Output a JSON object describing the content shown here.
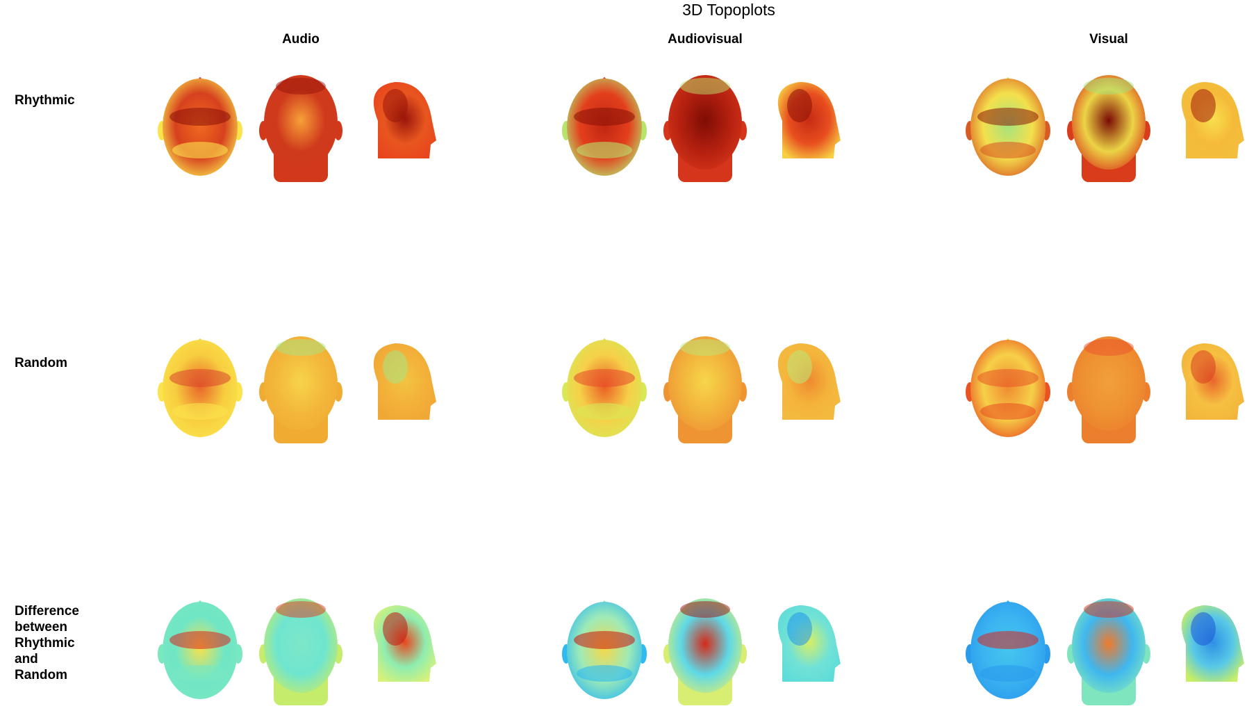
{
  "figure": {
    "title": "3D Topoplots",
    "columns": [
      {
        "label": "Audio"
      },
      {
        "label": "Audiovisual"
      },
      {
        "label": "Visual"
      }
    ],
    "rows": [
      {
        "label": "Rhythmic"
      },
      {
        "label": "Random"
      },
      {
        "label": "Difference\nbetween\nRhythmic\nand\nRandom"
      }
    ],
    "views": [
      "top",
      "back",
      "right-side"
    ],
    "colormap": "jet",
    "panels": [
      [
        {
          "top": {
            "base": "#d6411e",
            "center": "#f06a1f",
            "lower": "#fbe34c",
            "spot": "#8b1007"
          },
          "back": {
            "base": "#cf3a1c",
            "center": "#f7a038",
            "lower": "#d2391b",
            "spot": "#951309"
          },
          "side": {
            "base": "#e8561f",
            "center": "#9a160a",
            "lower": "#e9451d",
            "spot": "#9a160a"
          }
        },
        {
          "top": {
            "base": "#e33f1d",
            "center": "#c02612",
            "lower": "#b7e46d",
            "spot": "#861006"
          },
          "back": {
            "base": "#b3200f",
            "center": "#7e0c05",
            "lower": "#d5351a",
            "spot": "#b7e46d"
          },
          "side": {
            "base": "#e84e1f",
            "center": "#c62b14",
            "lower": "#f6d042",
            "spot": "#8a1107"
          }
        },
        {
          "top": {
            "base": "#f4e04c",
            "center": "#a4e37e",
            "lower": "#d95b24",
            "spot": "#8b1a0b"
          },
          "back": {
            "base": "#ecd446",
            "center": "#7a0b04",
            "lower": "#d93c1b",
            "spot": "#a6e07a"
          },
          "side": {
            "base": "#f5ba3a",
            "center": "#f8e04c",
            "lower": "#f2bf3c",
            "spot": "#a31c0c"
          }
        }
      ],
      [
        {
          "top": {
            "base": "#f7cd3f",
            "center": "#e9642a",
            "lower": "#fbe34c",
            "spot": "#d9452b"
          },
          "back": {
            "base": "#f3b83b",
            "center": "#f7d44a",
            "lower": "#f0ab33",
            "spot": "#a8e684"
          },
          "side": {
            "base": "#f3b13a",
            "center": "#f2c441",
            "lower": "#f0a735",
            "spot": "#a8e684"
          }
        },
        {
          "top": {
            "base": "#f6d048",
            "center": "#ea5f25",
            "lower": "#d8e856",
            "spot": "#e5492a"
          },
          "back": {
            "base": "#f2b33c",
            "center": "#f7d64a",
            "lower": "#ee9433",
            "spot": "#bce77a"
          },
          "side": {
            "base": "#f4b43b",
            "center": "#ee8a30",
            "lower": "#f3ba40",
            "spot": "#bce77a"
          }
        },
        {
          "top": {
            "base": "#f6d048",
            "center": "#ef8a31",
            "lower": "#e95322",
            "spot": "#e85527"
          },
          "back": {
            "base": "#ee9232",
            "center": "#f0a03a",
            "lower": "#ec7f2d",
            "spot": "#e9522a"
          },
          "side": {
            "base": "#f6c042",
            "center": "#e8662a",
            "lower": "#f2b53b",
            "spot": "#d93d20"
          }
        }
      ],
      [
        {
          "top": {
            "base": "#6fe6c6",
            "center": "#f7e14e",
            "lower": "#79e7c0",
            "spot": "#d8241b"
          },
          "back": {
            "base": "#6fe5cf",
            "center": "#7ee7c8",
            "lower": "#c5ec6a",
            "spot": "#e0381c"
          },
          "side": {
            "base": "#8eedb0",
            "center": "#e9461f",
            "lower": "#d7f17a",
            "spot": "#c1160e"
          }
        },
        {
          "top": {
            "base": "#9eeab7",
            "center": "#f6d84a",
            "lower": "#2fbaf0",
            "spot": "#c9140d"
          },
          "back": {
            "base": "#5ed9e7",
            "center": "#d42a18",
            "lower": "#d8ee73",
            "spot": "#a20d06"
          },
          "side": {
            "base": "#72e2d5",
            "center": "#d8ef64",
            "lower": "#5edcda",
            "spot": "#1f95ec"
          }
        },
        {
          "top": {
            "base": "#3bb4f1",
            "center": "#44c6ec",
            "lower": "#2a9bec",
            "spot": "#d8241b"
          },
          "back": {
            "base": "#3fb7ef",
            "center": "#ef7a2c",
            "lower": "#7ee5bf",
            "spot": "#d62d1c"
          },
          "side": {
            "base": "#58c9e6",
            "center": "#2d8fe6",
            "lower": "#c9ef63",
            "spot": "#1c56d6"
          }
        }
      ]
    ]
  }
}
